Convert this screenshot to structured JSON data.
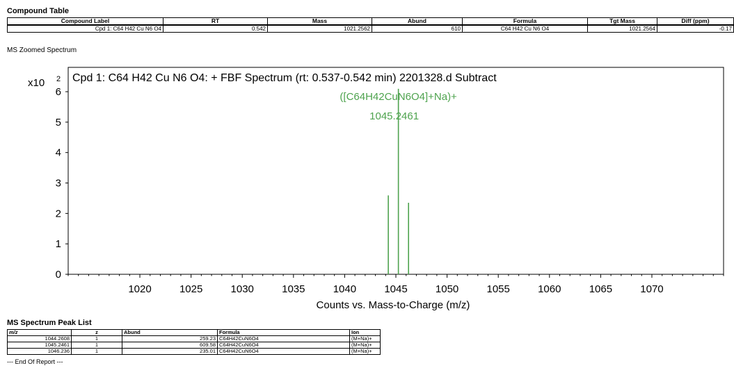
{
  "compound_table": {
    "title": "Compound Table",
    "headers": [
      "Compound Label",
      "RT",
      "Mass",
      "Abund",
      "Formula",
      "Tgt Mass",
      "Diff (ppm)"
    ],
    "row": {
      "label": "Cpd 1: C64 H42 Cu N6 O4",
      "rt": "0.542",
      "mass": "1021.2562",
      "abund": "610",
      "formula": "C64 H42 Cu N6 O4",
      "tgt_mass": "1021.2564",
      "diff": "-0.17"
    }
  },
  "spectrum_label": "MS Zoomed Spectrum",
  "chart_data": {
    "type": "bar",
    "title": "Cpd 1: C64 H42 Cu N6 O4: + FBF Spectrum (rt: 0.537-0.542 min) 2201328.d  Subtract",
    "xlabel": "Counts vs. Mass-to-Charge (m/z)",
    "ylabel": "",
    "y_multiplier_label": "x10",
    "y_multiplier_exp": "2",
    "xlim": [
      1013,
      1077
    ],
    "ylim": [
      0,
      6.8
    ],
    "xticks": [
      1020,
      1025,
      1030,
      1035,
      1040,
      1045,
      1050,
      1055,
      1060,
      1065,
      1070
    ],
    "yticks": [
      0,
      1,
      2,
      3,
      4,
      5,
      6
    ],
    "peaks": [
      {
        "mz": 1044.2608,
        "abund": 259.23
      },
      {
        "mz": 1045.2461,
        "abund": 609.58
      },
      {
        "mz": 1046.236,
        "abund": 235.01
      }
    ],
    "annotation": {
      "mz": 1045.2461,
      "line1": "([C64H42CuN6O4]+Na)+",
      "line2": "1045.2461"
    },
    "peak_color": "#4ea34e",
    "grid": false
  },
  "peak_list": {
    "title": "MS Spectrum Peak List",
    "headers": [
      "m/z",
      "z",
      "Abund",
      "Formula",
      "Ion"
    ],
    "rows": [
      {
        "mz": "1044.2608",
        "z": "1",
        "abund": "259.23",
        "formula": "C64H42CuN6O4",
        "ion": "(M+Na)+"
      },
      {
        "mz": "1045.2461",
        "z": "1",
        "abund": "609.58",
        "formula": "C64H42CuN6O4",
        "ion": "(M+Na)+"
      },
      {
        "mz": "1046.236",
        "z": "1",
        "abund": "235.01",
        "formula": "C64H42CuN6O4",
        "ion": "(M+Na)+"
      }
    ]
  },
  "end_of_report": "--- End Of Report ---"
}
